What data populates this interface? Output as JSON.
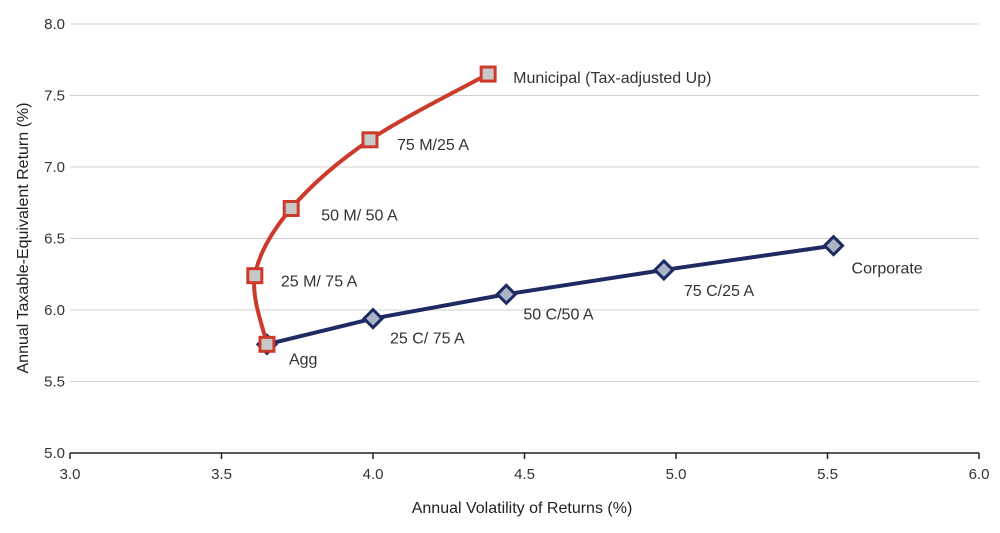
{
  "chart_data": {
    "type": "line",
    "title": "",
    "xlabel": "Annual Volatility of Returns (%)",
    "ylabel": "Annual Taxable-Equivalent Return (%)",
    "xlim": [
      3.0,
      6.0
    ],
    "ylim": [
      5.0,
      8.0
    ],
    "x_ticks": [
      "3.0",
      "3.5",
      "4.0",
      "4.5",
      "5.0",
      "5.5",
      "6.0"
    ],
    "y_ticks": [
      "5.0",
      "5.5",
      "6.0",
      "6.5",
      "7.0",
      "7.5",
      "8.0"
    ],
    "grid": true,
    "series": [
      {
        "name": "Municipal",
        "color": "#cc3a2b",
        "marker": "square",
        "points": [
          {
            "x": 3.65,
            "y": 5.76,
            "label": ""
          },
          {
            "x": 3.61,
            "y": 6.24,
            "label": "25 M/ 75 A"
          },
          {
            "x": 3.73,
            "y": 6.71,
            "label": "50 M/ 50 A"
          },
          {
            "x": 3.99,
            "y": 7.19,
            "label": "75 M/25 A"
          },
          {
            "x": 4.38,
            "y": 7.65,
            "label": "Municipal (Tax-adjusted Up)"
          }
        ]
      },
      {
        "name": "Corporate",
        "color": "#1f2a63",
        "marker": "diamond",
        "points": [
          {
            "x": 3.65,
            "y": 5.76,
            "label": "Agg"
          },
          {
            "x": 4.0,
            "y": 5.94,
            "label": "25 C/ 75 A"
          },
          {
            "x": 4.44,
            "y": 6.11,
            "label": "50 C/50 A"
          },
          {
            "x": 4.96,
            "y": 6.28,
            "label": "75 C/25 A"
          },
          {
            "x": 5.52,
            "y": 6.45,
            "label": "Corporate"
          }
        ]
      }
    ]
  }
}
